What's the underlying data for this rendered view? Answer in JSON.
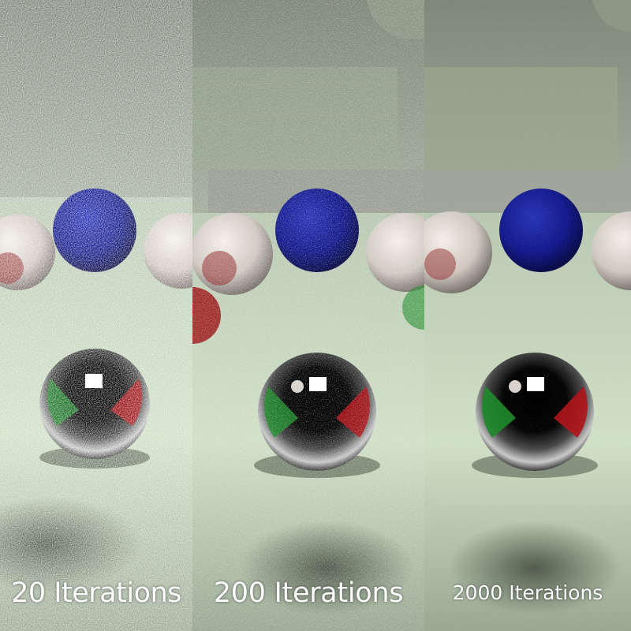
{
  "panels": [
    {
      "caption": "20 Iterations",
      "noise_level": 0.95
    },
    {
      "caption": "200 Iterations",
      "noise_level": 0.55
    },
    {
      "caption": "2000 Iterations",
      "noise_level": 0.25
    }
  ],
  "scene": {
    "floor_color": "#c9d9c1",
    "wall_color": "#8f988a",
    "diffuse_sphere_color": "#141a8a",
    "chrome_sphere_highlight": "#ffffff",
    "reflection_red": "#b0141a",
    "reflection_green": "#1e8a2a",
    "marble_sphere_color": "#d9d2cc"
  }
}
